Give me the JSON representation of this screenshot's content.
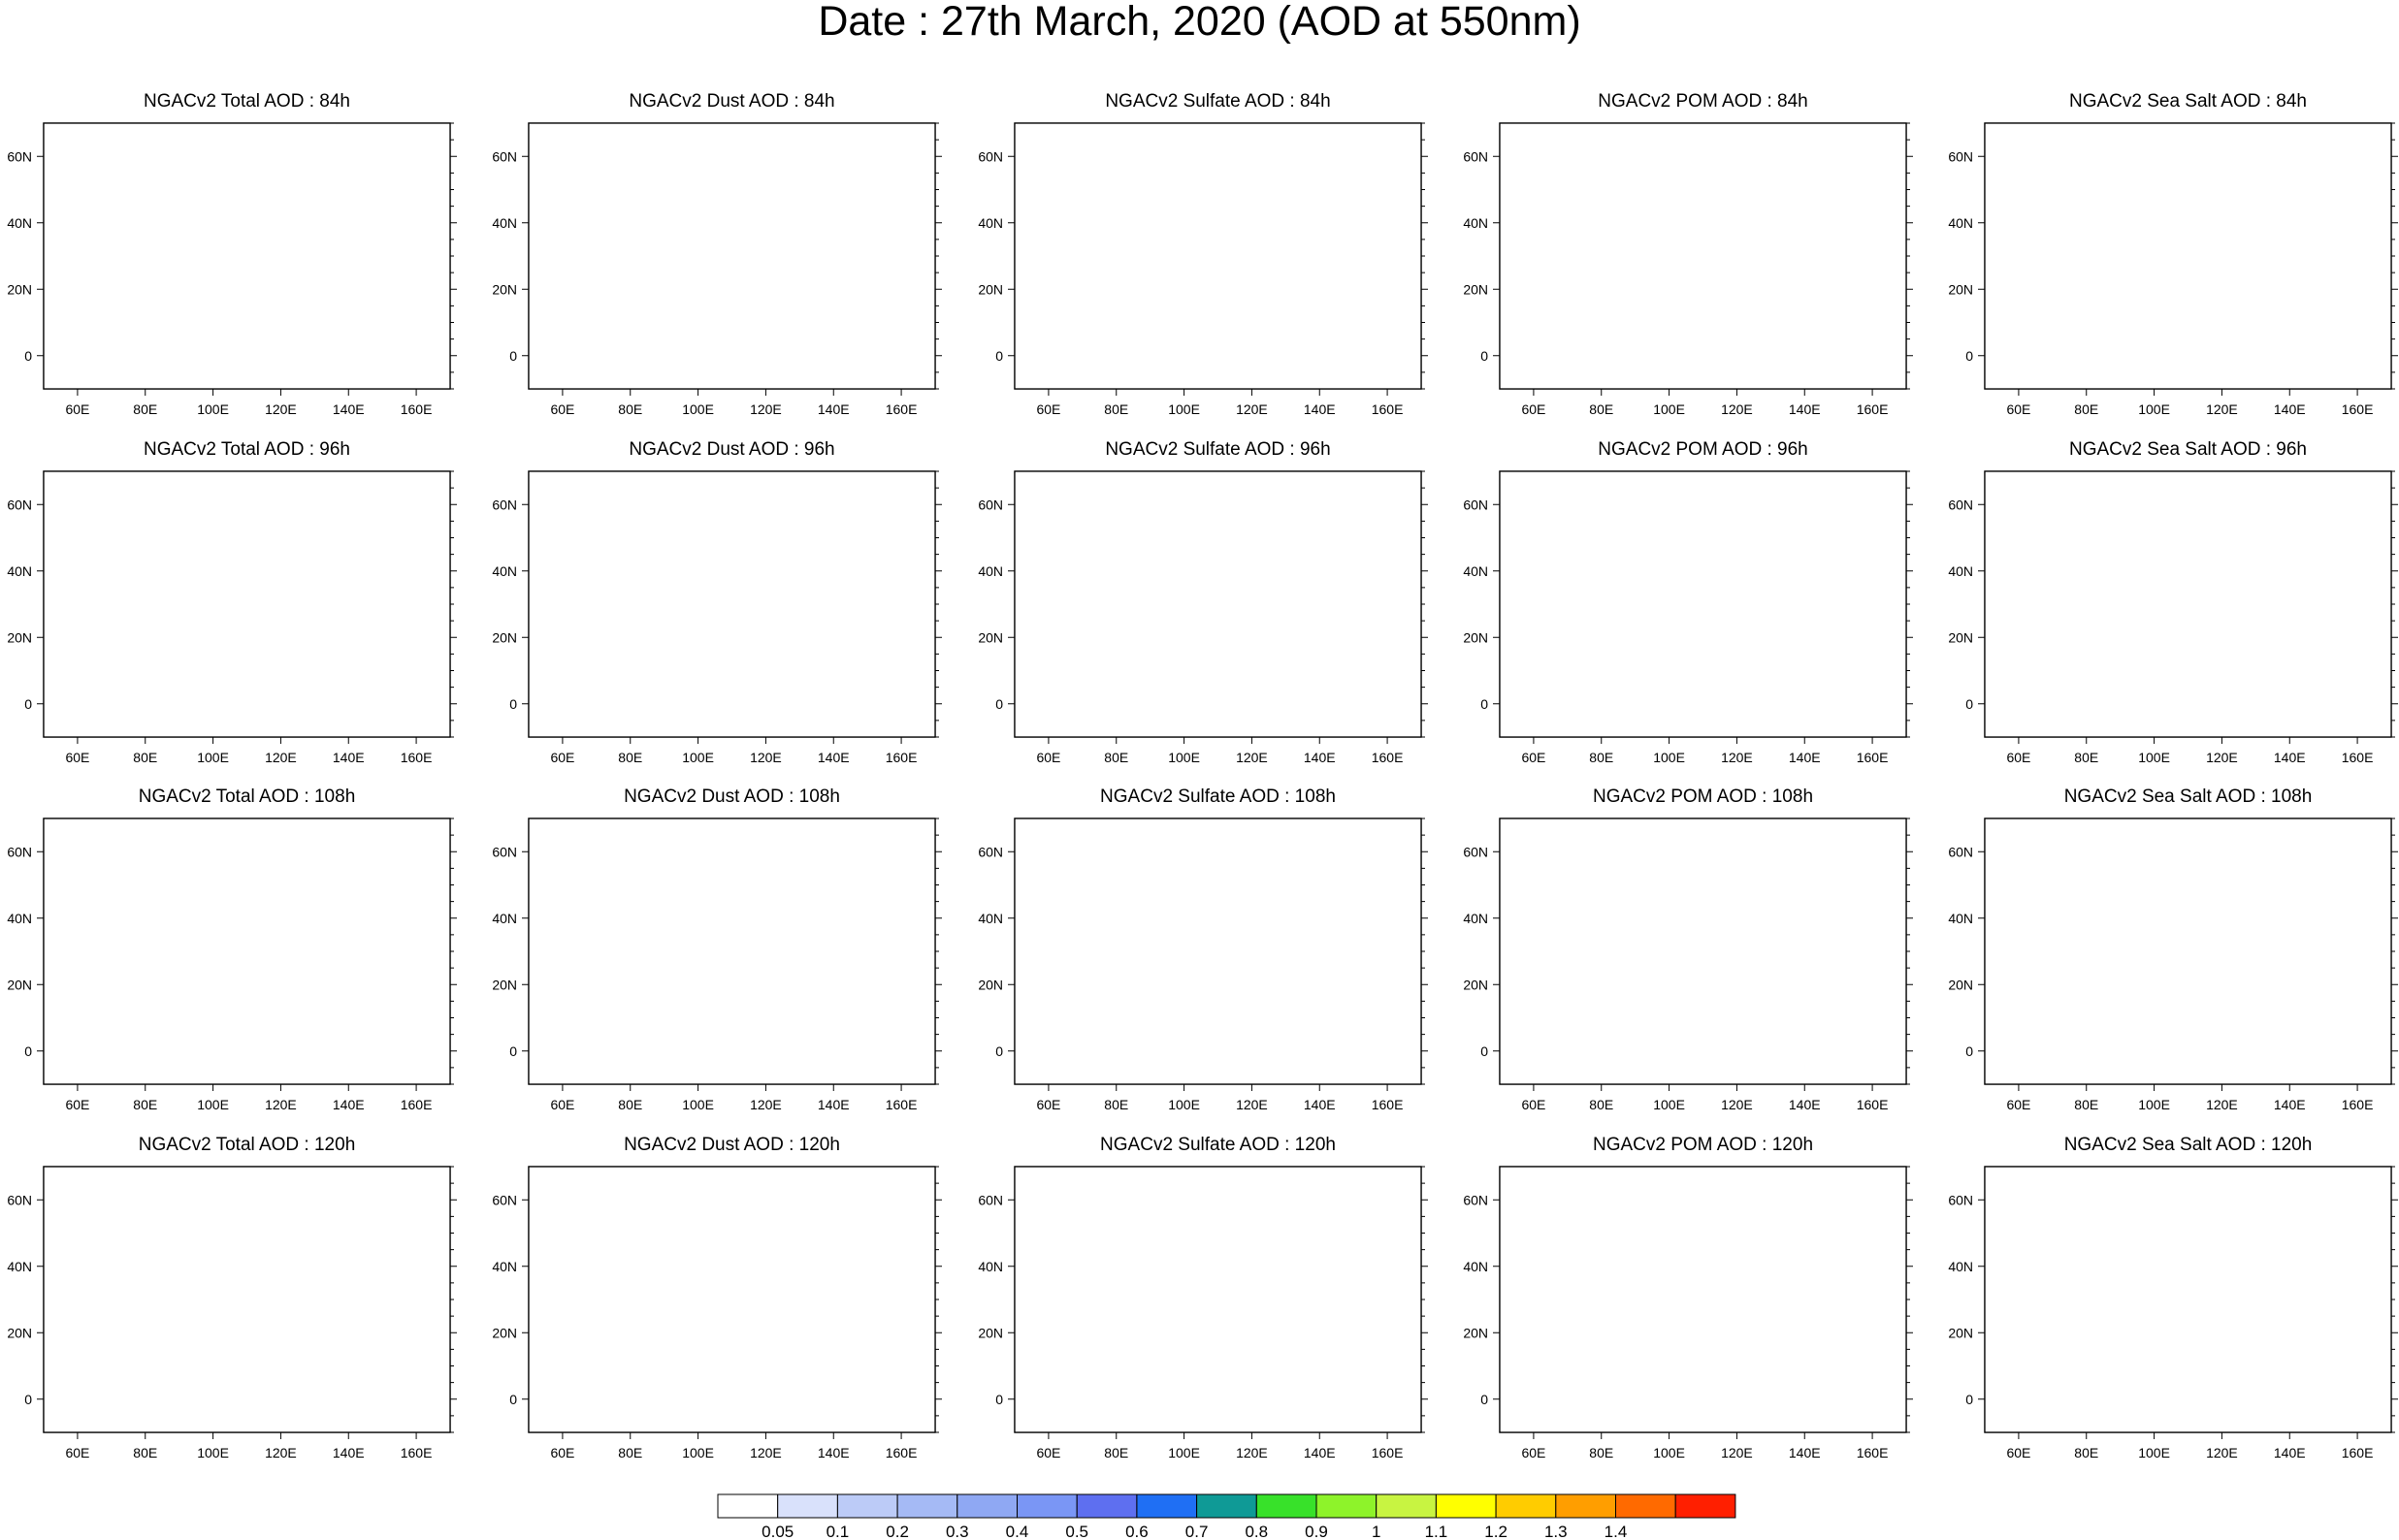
{
  "title": "Date : 27th March, 2020 (AOD at 550nm)",
  "panels": [
    {
      "title": "NGACv2 Total AOD : 84h",
      "species": "total",
      "hour": 84
    },
    {
      "title": "NGACv2 Dust AOD : 84h",
      "species": "dust",
      "hour": 84
    },
    {
      "title": "NGACv2 Sulfate AOD : 84h",
      "species": "sulfate",
      "hour": 84
    },
    {
      "title": "NGACv2 POM AOD : 84h",
      "species": "pom",
      "hour": 84
    },
    {
      "title": "NGACv2 Sea Salt AOD : 84h",
      "species": "seasalt",
      "hour": 84
    },
    {
      "title": "NGACv2 Total AOD : 96h",
      "species": "total",
      "hour": 96
    },
    {
      "title": "NGACv2 Dust AOD : 96h",
      "species": "dust",
      "hour": 96
    },
    {
      "title": "NGACv2 Sulfate AOD : 96h",
      "species": "sulfate",
      "hour": 96
    },
    {
      "title": "NGACv2 POM AOD : 96h",
      "species": "pom",
      "hour": 96
    },
    {
      "title": "NGACv2 Sea Salt AOD : 96h",
      "species": "seasalt",
      "hour": 96
    },
    {
      "title": "NGACv2 Total AOD : 108h",
      "species": "total",
      "hour": 108
    },
    {
      "title": "NGACv2 Dust AOD : 108h",
      "species": "dust",
      "hour": 108
    },
    {
      "title": "NGACv2 Sulfate AOD : 108h",
      "species": "sulfate",
      "hour": 108
    },
    {
      "title": "NGACv2 POM AOD : 108h",
      "species": "pom",
      "hour": 108
    },
    {
      "title": "NGACv2 Sea Salt AOD : 108h",
      "species": "seasalt",
      "hour": 108
    },
    {
      "title": "NGACv2 Total AOD : 120h",
      "species": "total",
      "hour": 120
    },
    {
      "title": "NGACv2 Dust AOD : 120h",
      "species": "dust",
      "hour": 120
    },
    {
      "title": "NGACv2 Sulfate AOD : 120h",
      "species": "sulfate",
      "hour": 120
    },
    {
      "title": "NGACv2 POM AOD : 120h",
      "species": "pom",
      "hour": 120
    },
    {
      "title": "NGACv2 Sea Salt  AOD : 120h",
      "species": "seasalt",
      "hour": 120
    }
  ],
  "map": {
    "lon_range": [
      50,
      170
    ],
    "lat_range": [
      -10,
      70
    ],
    "lon_ticks": [
      60,
      80,
      100,
      120,
      140,
      160
    ],
    "lon_tick_labels": [
      "60E",
      "80E",
      "100E",
      "120E",
      "140E",
      "160E"
    ],
    "lat_ticks": [
      0,
      20,
      40,
      60
    ],
    "lat_tick_labels": [
      "0",
      "20N",
      "40N",
      "60N"
    ]
  },
  "colorbar": {
    "labels": [
      "0.05",
      "0.1",
      "0.2",
      "0.3",
      "0.4",
      "0.5",
      "0.6",
      "0.7",
      "0.8",
      "0.9",
      "1",
      "1.1",
      "1.2",
      "1.3",
      "1.4"
    ],
    "colors": [
      "#ffffff",
      "#d9e1fb",
      "#bccbf7",
      "#a5baf5",
      "#8fa8f3",
      "#7a96f5",
      "#5e6ff0",
      "#1f6ff4",
      "#0f9a96",
      "#38e12a",
      "#8ef32a",
      "#c8f441",
      "#ffff00",
      "#ffcc00",
      "#ff9e00",
      "#ff6a00",
      "#ff1f00"
    ]
  }
}
